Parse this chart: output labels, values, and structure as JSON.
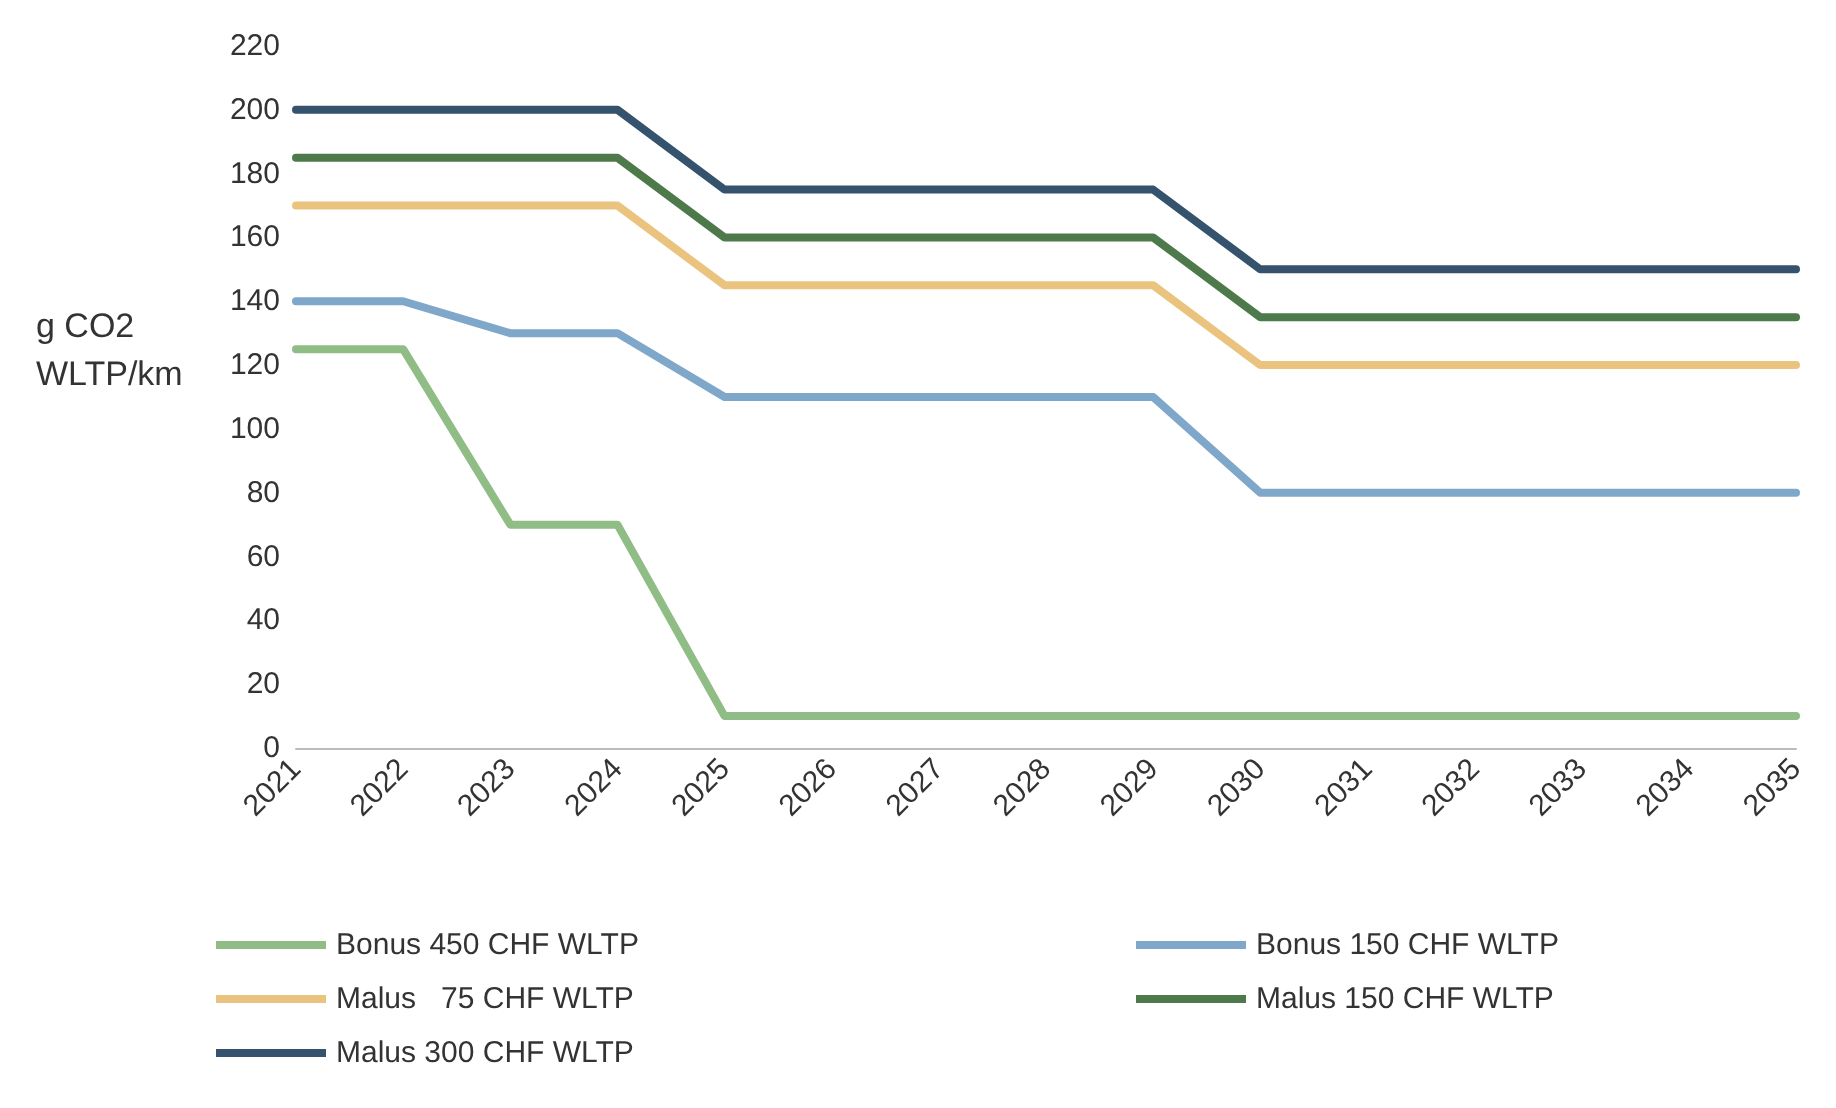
{
  "chart_data": {
    "type": "line",
    "ylabel": "g CO2 WLTP/km",
    "categories": [
      "2021",
      "2022",
      "2023",
      "2024",
      "2025",
      "2026",
      "2027",
      "2028",
      "2029",
      "2030",
      "2031",
      "2032",
      "2033",
      "2034",
      "2035"
    ],
    "series": [
      {
        "name": "Bonus 450 CHF WLTP",
        "color": "#8fbd85",
        "values": [
          125,
          125,
          70,
          70,
          10,
          10,
          10,
          10,
          10,
          10,
          10,
          10,
          10,
          10,
          10
        ]
      },
      {
        "name": "Bonus 150 CHF WLTP",
        "color": "#7fa7c9",
        "values": [
          140,
          140,
          130,
          130,
          110,
          110,
          110,
          110,
          110,
          80,
          80,
          80,
          80,
          80,
          80
        ]
      },
      {
        "name": "Malus   75 CHF WLTP",
        "color": "#eac47f",
        "values": [
          170,
          170,
          170,
          170,
          145,
          145,
          145,
          145,
          145,
          120,
          120,
          120,
          120,
          120,
          120
        ]
      },
      {
        "name": "Malus 150 CHF WLTP",
        "color": "#4e7a4b",
        "values": [
          185,
          185,
          185,
          185,
          160,
          160,
          160,
          160,
          160,
          135,
          135,
          135,
          135,
          135,
          135
        ]
      },
      {
        "name": "Malus 300 CHF WLTP",
        "color": "#35536d",
        "values": [
          200,
          200,
          200,
          200,
          175,
          175,
          175,
          175,
          175,
          150,
          150,
          150,
          150,
          150,
          150
        ]
      }
    ],
    "ylim": [
      0,
      220
    ],
    "yticks": [
      0,
      20,
      40,
      60,
      80,
      100,
      120,
      140,
      160,
      180,
      200,
      220
    ],
    "grid": false,
    "legend": "bottom",
    "marker": "none",
    "line_style": "solid"
  }
}
